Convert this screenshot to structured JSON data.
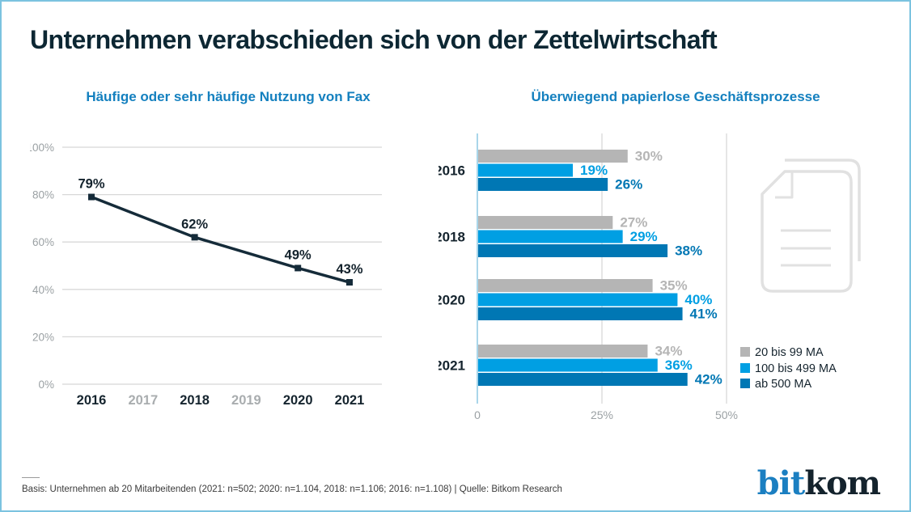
{
  "page": {
    "title": "Unternehmen verabschieden sich von der Zettelwirtschaft"
  },
  "footer": {
    "basis": "Basis: Unternehmen ab 20 Mitarbeitenden (2021: n=502; 2020: n=1.104, 2018: n=1.106; 2016: n=1.108) | Quelle: Bitkom Research"
  },
  "logo": {
    "part1": "bit",
    "part2": "kom"
  },
  "colors": {
    "border": "#7cc3e0",
    "title": "#0d2733",
    "chart_title": "#1480bf",
    "line": "#152b39",
    "point_label": "#13222c",
    "axis_text": "#9ba1a4",
    "axis_text_muted": "#a9adaf",
    "grid": "#d8d8d8",
    "axis_zero_line": "#a9d6ea",
    "series_gray": "#b5b5b5",
    "series_lightblue": "#009fe3",
    "series_darkblue": "#0077b4",
    "year_label": "#15242e",
    "legend_text": "#15242e",
    "icon": "#e1e1e1",
    "footer_text": "#3b3b3b",
    "logo_blue": "#1b7fc1",
    "logo_dark": "#14232d",
    "background": "#ffffff"
  },
  "chart_data": [
    {
      "type": "line",
      "title": "Häufige oder sehr häufige Nutzung von Fax",
      "x_axis": [
        {
          "label": "2016",
          "muted": false
        },
        {
          "label": "2017",
          "muted": true
        },
        {
          "label": "2018",
          "muted": false
        },
        {
          "label": "2019",
          "muted": true
        },
        {
          "label": "2020",
          "muted": false
        },
        {
          "label": "2021",
          "muted": false
        }
      ],
      "points": [
        {
          "x": "2016",
          "value": 79,
          "label": "79%"
        },
        {
          "x": "2018",
          "value": 62,
          "label": "62%"
        },
        {
          "x": "2020",
          "value": 49,
          "label": "49%"
        },
        {
          "x": "2021",
          "value": 43,
          "label": "43%"
        }
      ],
      "ylim": [
        0,
        100
      ],
      "y_ticks": [
        {
          "label": "100%",
          "value": 100
        },
        {
          "label": "80%",
          "value": 80
        },
        {
          "label": "60%",
          "value": 60
        },
        {
          "label": "40%",
          "value": 40
        },
        {
          "label": "20%",
          "value": 20
        },
        {
          "label": "0%",
          "value": 0
        }
      ],
      "grid": "horizontal",
      "legend_position": "none"
    },
    {
      "type": "bar",
      "orientation": "horizontal",
      "title": "Überwiegend papierlose Geschäftsprozesse",
      "categories": [
        "2016",
        "2018",
        "2020",
        "2021"
      ],
      "series": [
        {
          "name": "20 bis 99 MA",
          "color": "#b5b5b5",
          "values": [
            30,
            27,
            35,
            34
          ],
          "labels": [
            "30%",
            "27%",
            "35%",
            "34%"
          ]
        },
        {
          "name": "100 bis 499 MA",
          "color": "#009fe3",
          "values": [
            19,
            29,
            40,
            36
          ],
          "labels": [
            "19%",
            "29%",
            "40%",
            "36%"
          ]
        },
        {
          "name": "ab 500 MA",
          "color": "#0077b4",
          "values": [
            26,
            38,
            41,
            42
          ],
          "labels": [
            "26%",
            "38%",
            "41%",
            "42%"
          ]
        }
      ],
      "xlim": [
        0,
        50
      ],
      "x_ticks": [
        {
          "label": "0",
          "value": 0
        },
        {
          "label": "25%",
          "value": 25
        },
        {
          "label": "50%",
          "value": 50
        }
      ],
      "grid": "vertical",
      "legend_position": "right-bottom"
    }
  ]
}
